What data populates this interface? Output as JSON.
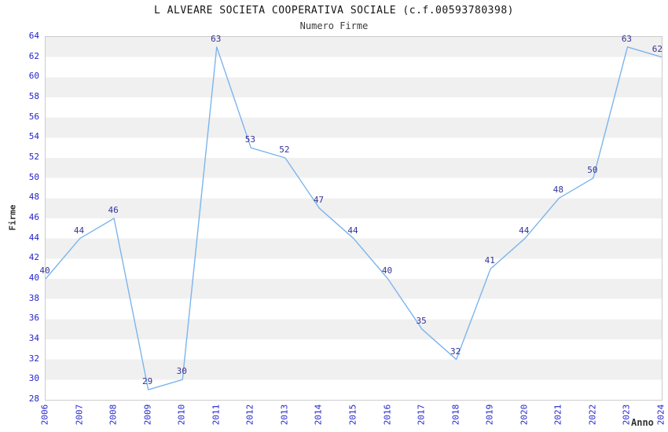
{
  "chart_data": {
    "type": "line",
    "title": "L ALVEARE SOCIETA COOPERATIVA SOCIALE (c.f.00593780398)",
    "subtitle": "Numero Firme",
    "xlabel": "Anno",
    "ylabel": "Firme",
    "x": [
      2006,
      2007,
      2008,
      2009,
      2010,
      2011,
      2012,
      2013,
      2014,
      2015,
      2016,
      2017,
      2018,
      2019,
      2020,
      2021,
      2022,
      2023,
      2024
    ],
    "values": [
      40,
      44,
      46,
      29,
      30,
      63,
      53,
      52,
      47,
      44,
      40,
      35,
      32,
      41,
      44,
      48,
      50,
      63,
      62
    ],
    "ylim": [
      28,
      64
    ],
    "ytick_step": 2,
    "grid": "horizontal alternating bands every 2 units",
    "legend_position": "none",
    "data_labels_visible": true,
    "colors": {
      "line": "#7cb5ec",
      "data_label": "#333399",
      "tick_label": "#2323cd",
      "band": "#f0f0f0",
      "band_alt": "#ffffff",
      "plot_border": "#cccccc",
      "title": "#141414",
      "subtitle": "#3c3c3c",
      "axis_title": "#333333"
    }
  }
}
